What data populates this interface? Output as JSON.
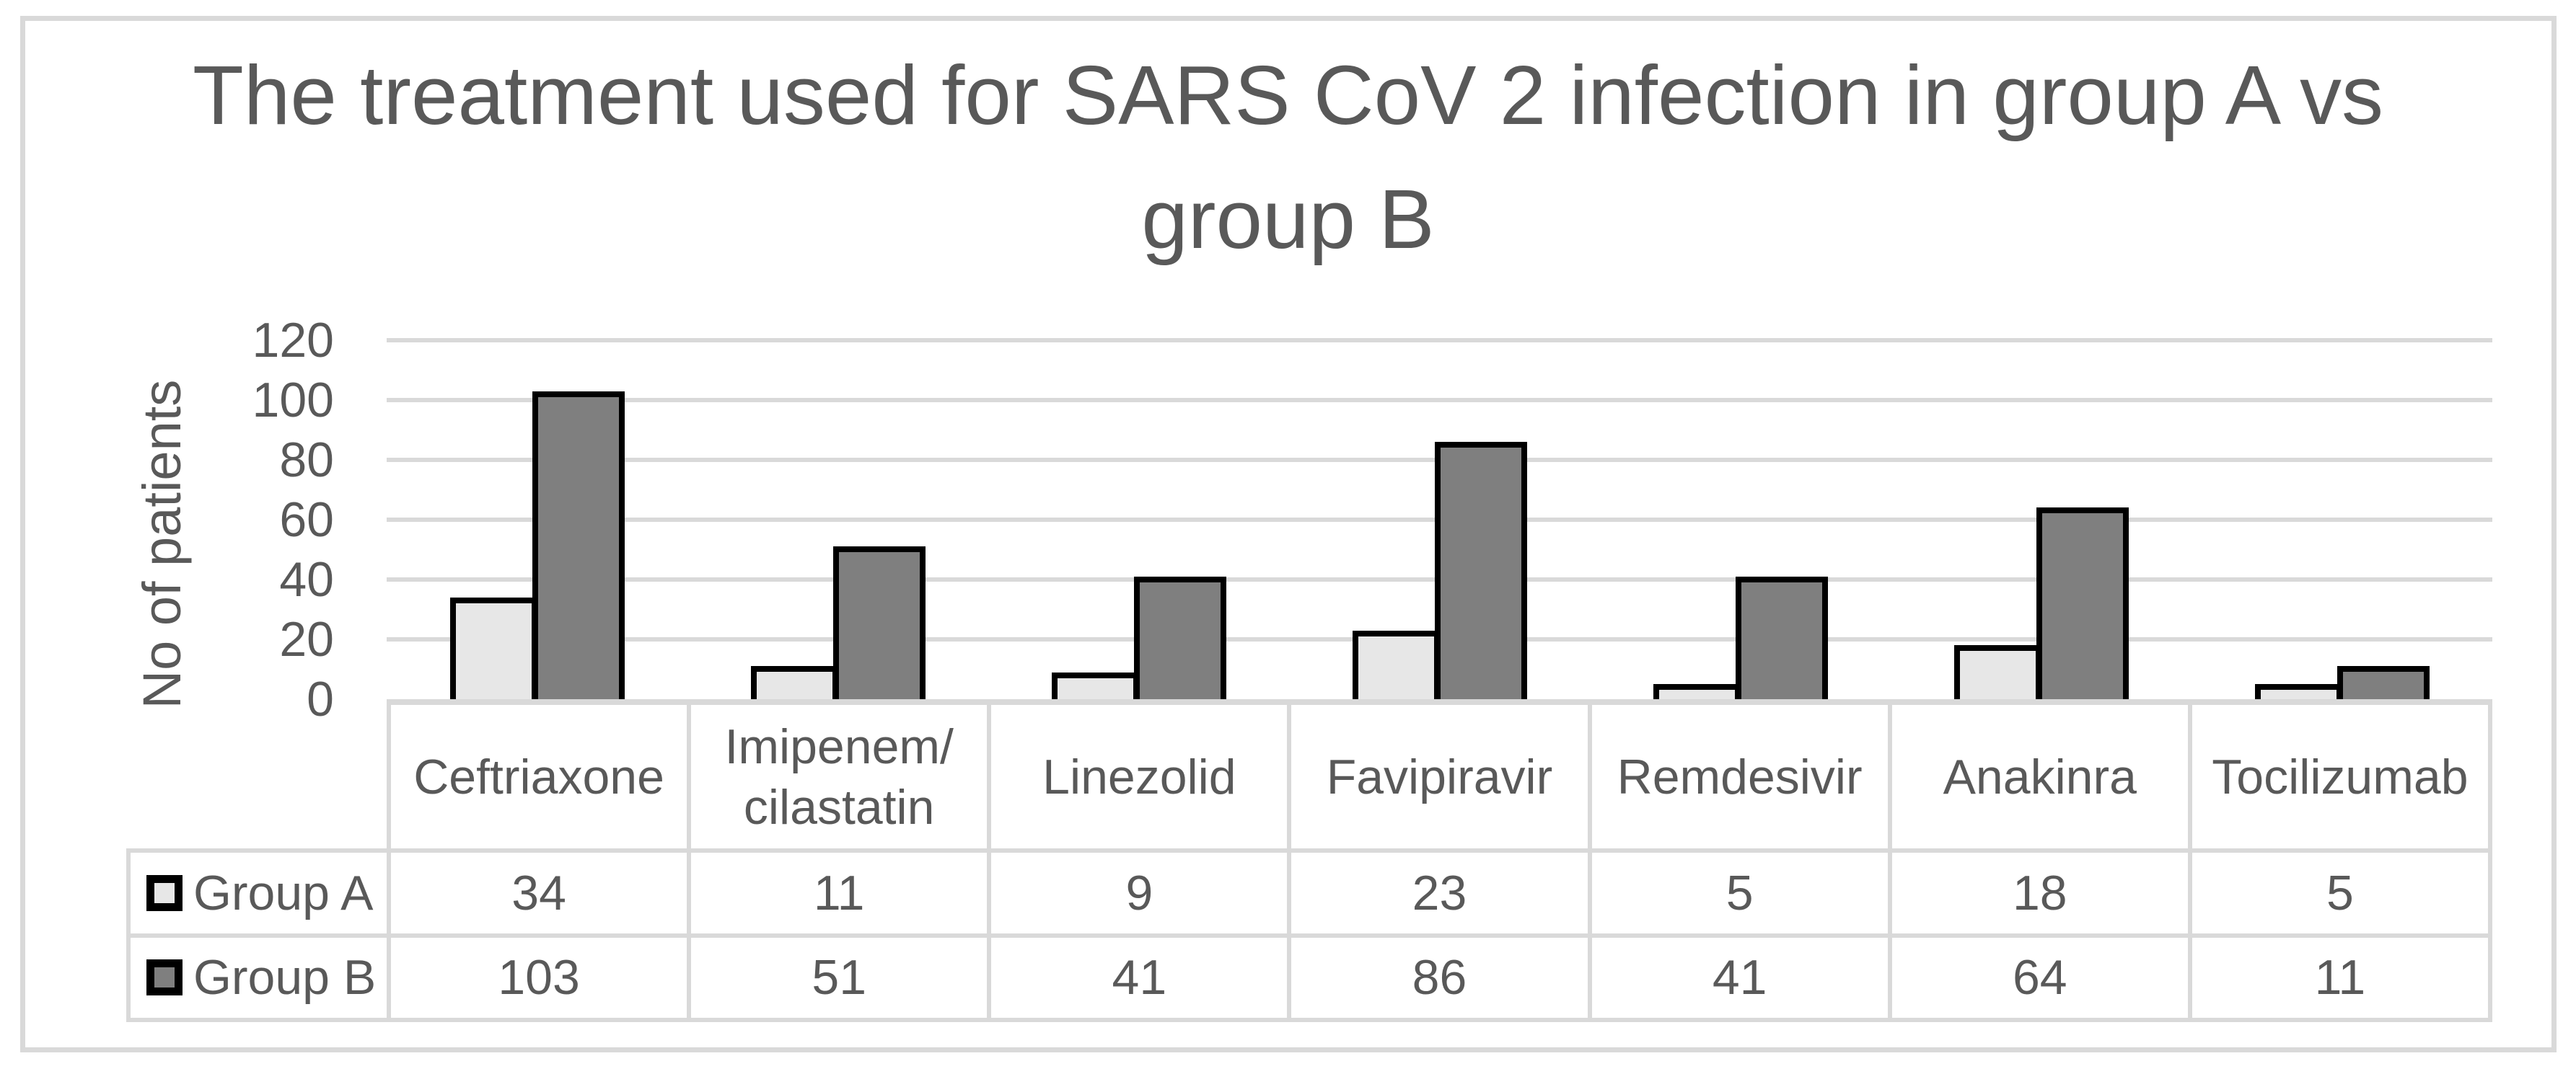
{
  "chart_data": {
    "type": "bar",
    "title": "The treatment used for SARS CoV 2 infection in group A vs group B",
    "title_lines": [
      "The treatment used for SARS CoV 2 infection in group A vs",
      "group B"
    ],
    "ylabel": "No of patients",
    "categories": [
      "Ceftriaxone",
      "Imipenem/ cilastatin",
      "Linezolid",
      "Favipiravir",
      "Remdesivir",
      "Anakinra",
      "Tocilizumab"
    ],
    "category_display_lines": [
      [
        "Ceftriaxone"
      ],
      [
        "Imipenem/",
        "cilastatin"
      ],
      [
        "Linezolid"
      ],
      [
        "Favipiravir"
      ],
      [
        "Remdesivir"
      ],
      [
        "Anakinra"
      ],
      [
        "Tocilizumab"
      ]
    ],
    "series": [
      {
        "name": "Group A",
        "values": [
          34,
          11,
          9,
          23,
          5,
          18,
          5
        ],
        "fill": "#e7e7e7"
      },
      {
        "name": "Group B",
        "values": [
          103,
          51,
          41,
          86,
          41,
          64,
          11
        ],
        "fill": "#7f7f7f"
      }
    ],
    "ylim": [
      0,
      120
    ],
    "yticks": [
      0,
      20,
      40,
      60,
      80,
      100,
      120
    ],
    "grid": true,
    "legend_position": "left-of-data-table",
    "colors": {
      "text": "#595959",
      "gridline": "#d9d9d9",
      "bar_border": "#000000",
      "frame": "#d9d9d9"
    }
  }
}
